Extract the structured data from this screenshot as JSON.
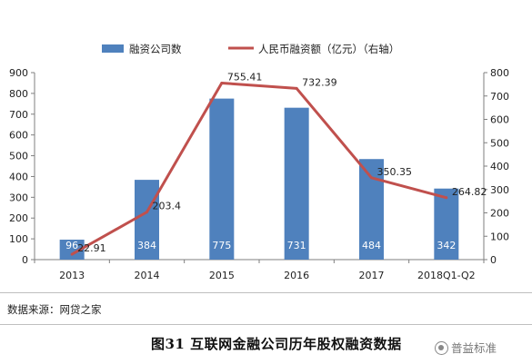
{
  "chart_data": {
    "type": "bar",
    "categories": [
      "2013",
      "2014",
      "2015",
      "2016",
      "2017",
      "2018Q1-Q2"
    ],
    "series": [
      {
        "name": "融资公司数",
        "kind": "bar",
        "axis": "left",
        "color": "#4f81bd",
        "values": [
          96,
          384,
          775,
          731,
          484,
          342
        ],
        "labels": [
          "96",
          "384",
          "775",
          "731",
          "484",
          "342"
        ]
      },
      {
        "name": "人民币融资额（亿元）（右轴）",
        "kind": "line",
        "axis": "right",
        "color": "#c0504d",
        "values": [
          22.91,
          203.4,
          755.41,
          732.39,
          350.35,
          264.82
        ],
        "labels": [
          "22.91",
          "203.4",
          "755.41",
          "732.39",
          "350.35",
          "264.82"
        ]
      }
    ],
    "y_left": {
      "min": 0,
      "max": 900,
      "step": 100
    },
    "y_right": {
      "min": 0,
      "max": 800,
      "step": 100
    },
    "legend": "top",
    "grid": false
  },
  "source_note": "数据来源：网贷之家",
  "caption": "图31  互联网金融公司历年股权融资数据",
  "watermark": "普益标准"
}
